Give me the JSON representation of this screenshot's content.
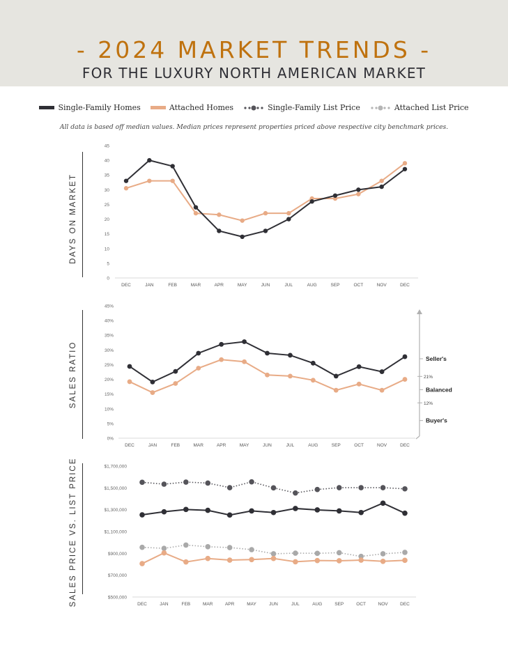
{
  "header": {
    "title": "- 2024 MARKET TRENDS -",
    "subtitle": "FOR THE LUXURY NORTH AMERICAN MARKET"
  },
  "legend": [
    {
      "label": "Single-Family Homes",
      "color": "#2f2f35",
      "style": "solid"
    },
    {
      "label": "Attached Homes",
      "color": "#e8ab86",
      "style": "solid"
    },
    {
      "label": "Single-Family List Price",
      "color": "#55545a",
      "style": "dotted"
    },
    {
      "label": "Attached List Price",
      "color": "#a9a9a9",
      "style": "dotted"
    }
  ],
  "note": "All data is based off median values. Median prices represent properties priced above respective city benchmark prices.",
  "chart_data": [
    {
      "type": "line",
      "ylabel": "DAYS ON MARKET",
      "categories": [
        "DEC",
        "JAN",
        "FEB",
        "MAR",
        "APR",
        "MAY",
        "JUN",
        "JUL",
        "AUG",
        "SEP",
        "OCT",
        "NOV",
        "DEC"
      ],
      "ylim": [
        0,
        45
      ],
      "yticks": [
        0,
        5,
        10,
        15,
        20,
        25,
        30,
        35,
        40,
        45
      ],
      "ytick_labels": [
        "0",
        "5",
        "10",
        "15",
        "20",
        "25",
        "30",
        "35",
        "40",
        "45"
      ],
      "series": [
        {
          "name": "Attached Homes",
          "color": "#e8ab86",
          "style": "solid",
          "values": [
            30.5,
            33,
            33,
            22,
            21.5,
            19.5,
            22,
            22,
            27,
            27,
            28.5,
            33,
            39
          ]
        },
        {
          "name": "Single-Family Homes",
          "color": "#2f2f35",
          "style": "solid",
          "values": [
            33,
            40,
            38,
            24,
            16,
            14,
            16,
            20,
            26,
            28,
            30,
            31,
            37
          ]
        }
      ]
    },
    {
      "type": "line",
      "ylabel": "SALES RATIO",
      "categories": [
        "DEC",
        "JAN",
        "FEB",
        "MAR",
        "APR",
        "MAY",
        "JUN",
        "JUL",
        "AUG",
        "SEP",
        "OCT",
        "NOV",
        "DEC"
      ],
      "ylim": [
        0,
        45
      ],
      "yticks": [
        0,
        5,
        10,
        15,
        20,
        25,
        30,
        35,
        40,
        45
      ],
      "ytick_labels": [
        "0%",
        "5%",
        "10%",
        "15%",
        "20%",
        "25%",
        "30%",
        "35%",
        "40%",
        "45%"
      ],
      "series": [
        {
          "name": "Attached Homes",
          "color": "#e8ab86",
          "style": "solid",
          "values": [
            19.2,
            15.5,
            18.6,
            23.8,
            26.7,
            26.0,
            21.5,
            21.1,
            19.7,
            16.3,
            18.4,
            16.3,
            20.0
          ]
        },
        {
          "name": "Single-Family Homes",
          "color": "#2f2f35",
          "style": "solid",
          "values": [
            24.4,
            19.1,
            22.7,
            28.9,
            31.9,
            32.8,
            28.9,
            28.2,
            25.5,
            21.1,
            24.3,
            22.6,
            27.7
          ]
        }
      ],
      "annotations": {
        "thresholds": [
          {
            "value": 21,
            "label": "21%"
          },
          {
            "value": 12,
            "label": "12%"
          }
        ],
        "zones": [
          {
            "label": "Seller's",
            "value": 27
          },
          {
            "label": "Balanced",
            "value": 16.5
          },
          {
            "label": "Buyer's",
            "value": 6
          }
        ]
      }
    },
    {
      "type": "line",
      "ylabel": "SALES PRICE VS. LIST PRICE",
      "categories": [
        "DEC",
        "JAN",
        "FEB",
        "MAR",
        "APR",
        "MAY",
        "JUN",
        "JUL",
        "AUG",
        "SEP",
        "OCT",
        "NOV",
        "DEC"
      ],
      "ylim": [
        500000,
        1700000
      ],
      "yticks": [
        500000,
        700000,
        900000,
        1100000,
        1300000,
        1500000,
        1700000
      ],
      "ytick_labels": [
        "$500,000",
        "$700,000",
        "$900,000",
        "$1,100,000",
        "$1,300,000",
        "$1,500,000",
        "$1,700,000"
      ],
      "series": [
        {
          "name": "Single-Family List Price",
          "color": "#55545a",
          "style": "dotted",
          "values": [
            1551000,
            1534000,
            1553000,
            1544000,
            1502000,
            1555000,
            1500000,
            1453000,
            1485000,
            1502000,
            1502000,
            1502000,
            1491000
          ]
        },
        {
          "name": "Single-Family Homes",
          "color": "#2f2f35",
          "style": "solid",
          "values": [
            1253000,
            1281000,
            1302000,
            1294000,
            1251000,
            1289000,
            1274000,
            1311000,
            1298000,
            1289000,
            1274000,
            1360000,
            1268000
          ]
        },
        {
          "name": "Attached List Price",
          "color": "#a9a9a9",
          "style": "dotted",
          "values": [
            955000,
            946000,
            976000,
            961000,
            953000,
            934000,
            896000,
            902000,
            900000,
            906000,
            872000,
            896000,
            909000
          ]
        },
        {
          "name": "Attached Homes",
          "color": "#e8ab86",
          "style": "solid",
          "values": [
            806000,
            904000,
            821000,
            853000,
            838000,
            843000,
            853000,
            823000,
            834000,
            832000,
            838000,
            827000,
            836000
          ]
        }
      ]
    }
  ]
}
